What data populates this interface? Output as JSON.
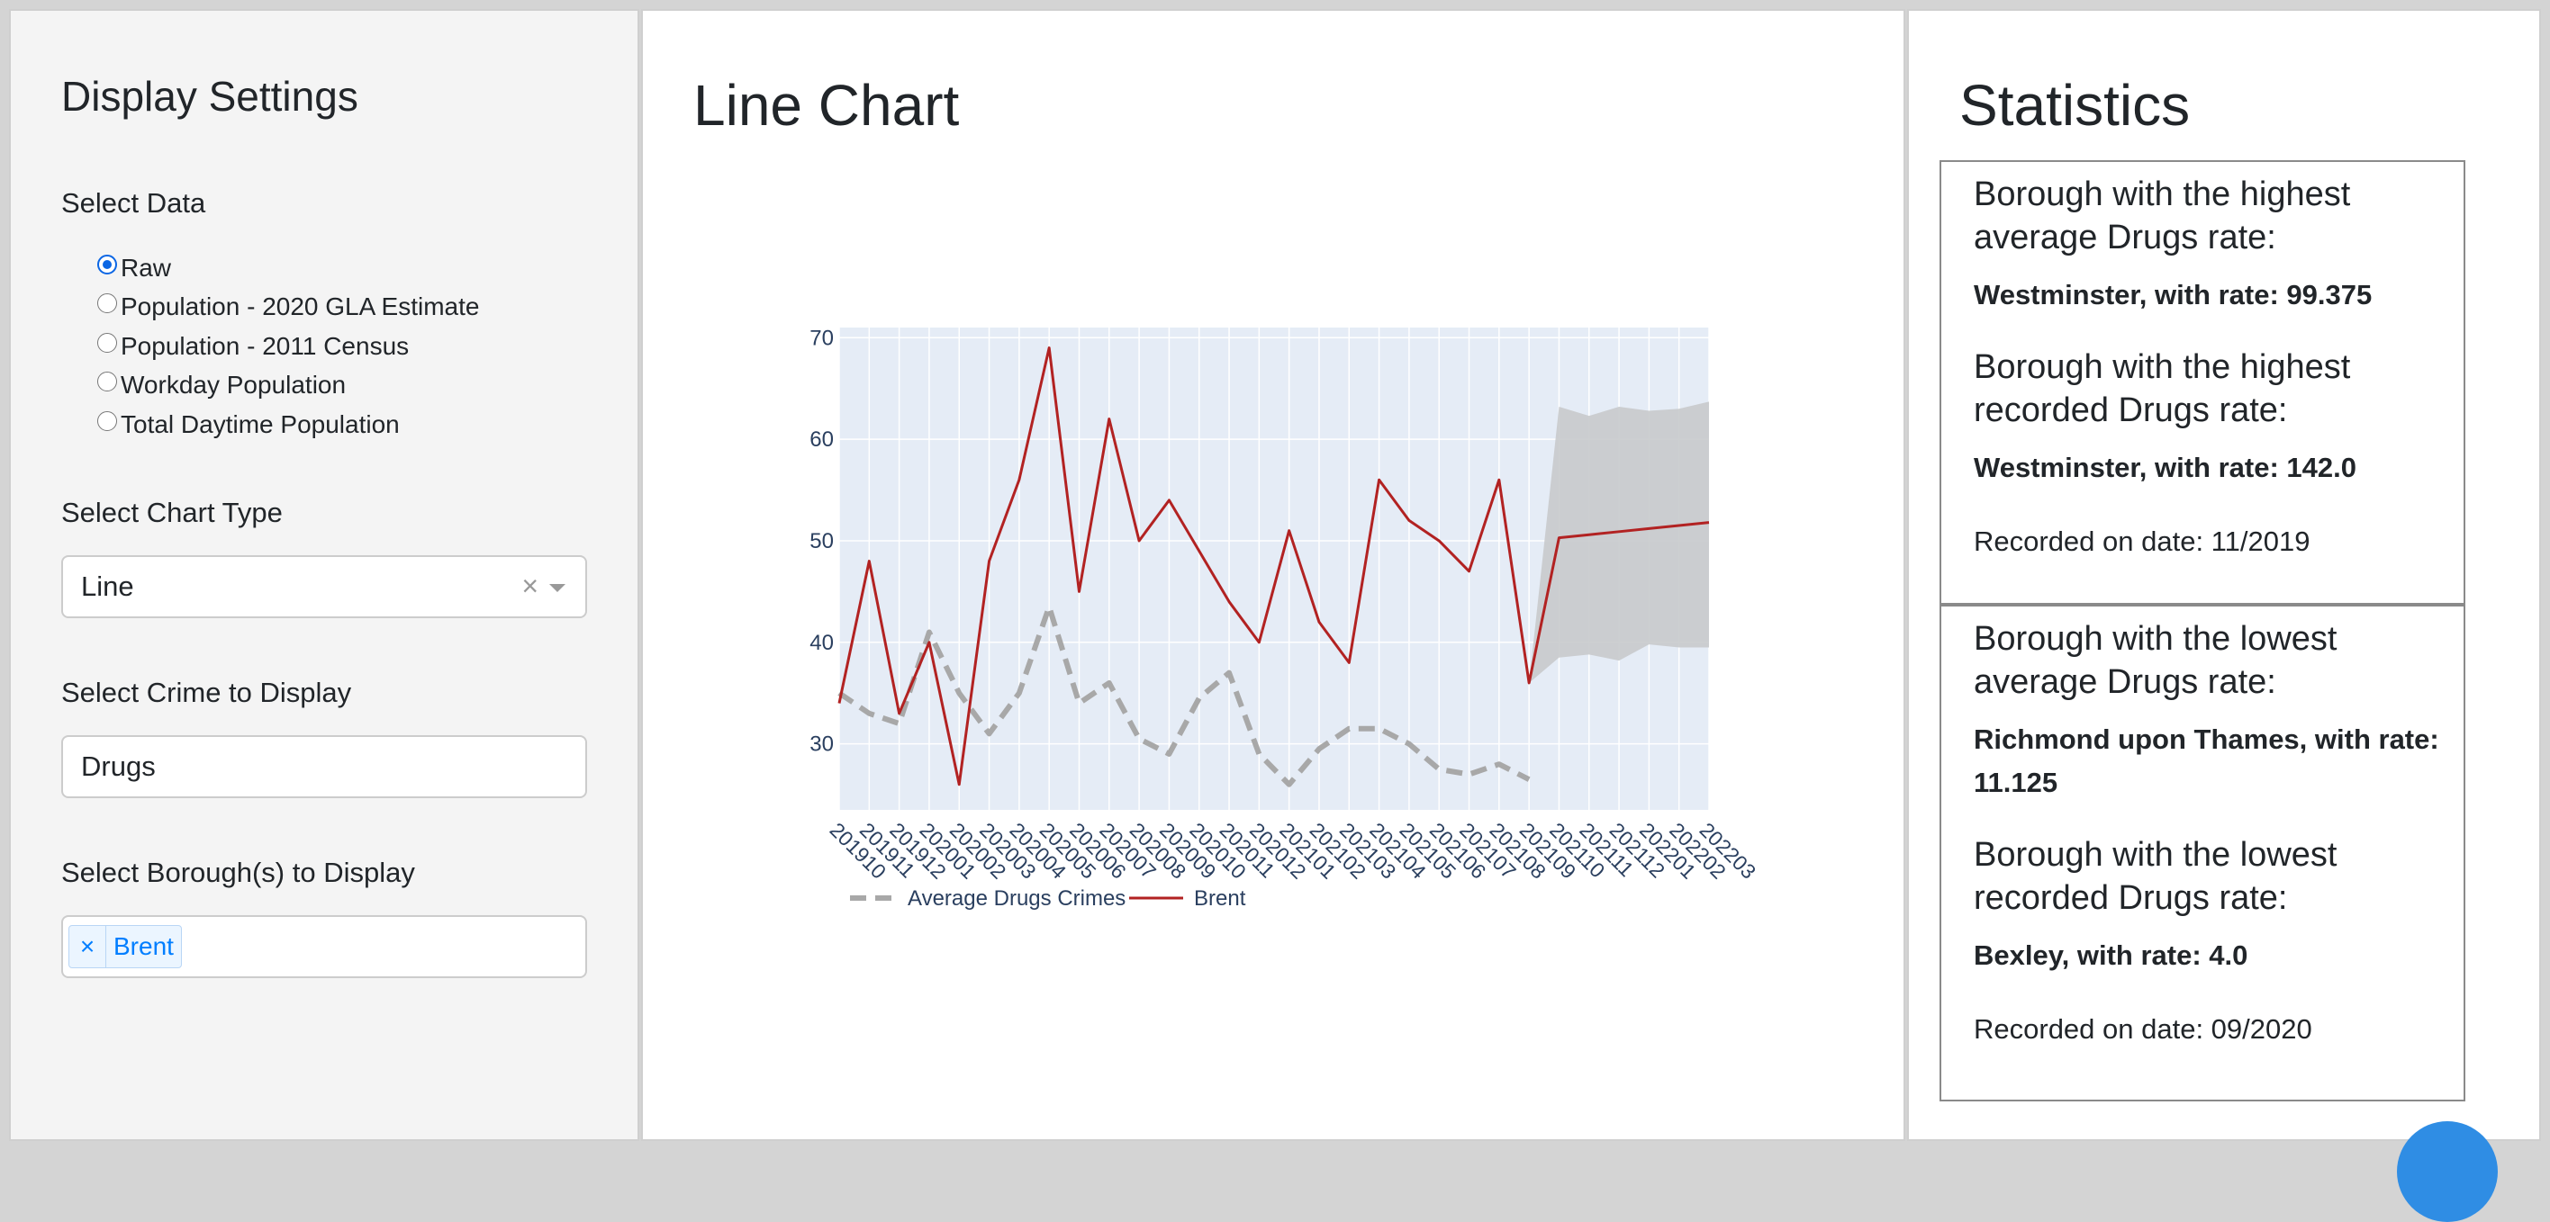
{
  "settings": {
    "title": "Display Settings",
    "select_data_label": "Select Data",
    "data_options": [
      "Raw",
      "Population - 2020 GLA Estimate",
      "Population - 2011 Census",
      "Workday Population",
      "Total Daytime Population"
    ],
    "selected_data_option": "Raw",
    "chart_type_label": "Select Chart Type",
    "chart_type_value": "Line",
    "clear_icon": "×",
    "crime_label": "Select Crime to Display",
    "crime_value": "Drugs",
    "borough_label": "Select Borough(s) to Display",
    "borough_remove_icon": "×",
    "selected_boroughs": [
      "Brent"
    ]
  },
  "chart_panel": {
    "title": "Line Chart"
  },
  "chart_data": {
    "type": "line",
    "x": [
      "201910",
      "201911",
      "201912",
      "202001",
      "202002",
      "202003",
      "202004",
      "202005",
      "202006",
      "202007",
      "202008",
      "202009",
      "202010",
      "202011",
      "202012",
      "202101",
      "202102",
      "202103",
      "202104",
      "202105",
      "202106",
      "202107",
      "202108",
      "202109",
      "202110",
      "202111",
      "202112",
      "202201",
      "202202",
      "202203"
    ],
    "ylim": [
      23.5,
      71
    ],
    "yticks": [
      30,
      40,
      50,
      60,
      70
    ],
    "grid": true,
    "legend_position": "bottom-left",
    "series": [
      {
        "name": "Average Drugs Crimes",
        "style": "dashed",
        "color": "#a8a8a8",
        "values": [
          35,
          33,
          32,
          41,
          35,
          31,
          35,
          43.5,
          34,
          36,
          30.5,
          29,
          34.5,
          37,
          29,
          26,
          29.5,
          31.5,
          31.5,
          30,
          27.5,
          27,
          28,
          26.5,
          null,
          null,
          null,
          null,
          null,
          null
        ]
      },
      {
        "name": "Brent",
        "style": "solid",
        "color": "#b22222",
        "values": [
          34,
          48,
          33,
          40,
          26,
          48,
          56,
          69,
          45,
          62,
          50,
          54,
          49,
          44,
          40,
          51,
          42,
          38,
          56,
          52,
          50,
          47,
          56,
          36,
          50.3,
          50.6,
          50.9,
          51.2,
          51.5,
          51.8
        ]
      },
      {
        "name": "forecast-band",
        "color": "#c8cacc",
        "upper": [
          null,
          null,
          null,
          null,
          null,
          null,
          null,
          null,
          null,
          null,
          null,
          null,
          null,
          null,
          null,
          null,
          null,
          null,
          null,
          null,
          null,
          null,
          null,
          36,
          63.2,
          62.3,
          63.2,
          62.8,
          63,
          63.7
        ],
        "lower": [
          null,
          null,
          null,
          null,
          null,
          null,
          null,
          null,
          null,
          null,
          null,
          null,
          null,
          null,
          null,
          null,
          null,
          null,
          null,
          null,
          null,
          null,
          null,
          36,
          38.5,
          38.8,
          38.2,
          39.8,
          39.5,
          39.5
        ]
      }
    ]
  },
  "stats": {
    "title": "Statistics",
    "highest_avg_title": "Borough with the highest average Drugs rate:",
    "highest_avg_value": "Westminster, with rate: 99.375",
    "highest_rec_title": "Borough with the highest recorded Drugs rate:",
    "highest_rec_value": "Westminster, with rate: 142.0",
    "highest_rec_date": "Recorded on date: 11/2019",
    "lowest_avg_title": "Borough with the lowest average Drugs rate:",
    "lowest_avg_value": "Richmond upon Thames, with rate: 11.125",
    "lowest_rec_title": "Borough with the lowest recorded Drugs rate:",
    "lowest_rec_value": "Bexley, with rate: 4.0",
    "lowest_rec_date": "Recorded on date: 09/2020"
  }
}
